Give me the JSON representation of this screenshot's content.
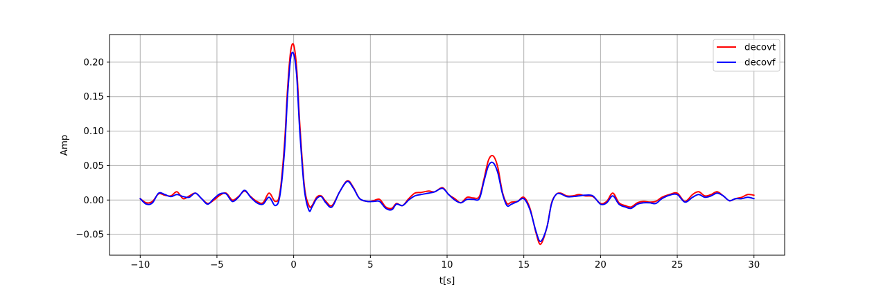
{
  "chart_data": {
    "type": "line",
    "title": "",
    "xlabel": "t[s]",
    "ylabel": "Amp",
    "xlim": [
      -12,
      32
    ],
    "ylim": [
      -0.08,
      0.24
    ],
    "xticks": [
      -10,
      -5,
      0,
      5,
      10,
      15,
      20,
      25,
      30
    ],
    "xtick_labels": [
      "−10",
      "−5",
      "0",
      "5",
      "10",
      "15",
      "20",
      "25",
      "30"
    ],
    "yticks": [
      -0.05,
      0.0,
      0.05,
      0.1,
      0.15,
      0.2
    ],
    "ytick_labels": [
      "−0.05",
      "0.00",
      "0.05",
      "0.10",
      "0.15",
      "0.20"
    ],
    "grid": true,
    "legend_position": "top-right",
    "series": [
      {
        "name": "decovt",
        "color": "#ff0000",
        "x": [
          -10,
          -9.6,
          -9.2,
          -8.8,
          -8.4,
          -8,
          -7.6,
          -7.2,
          -6.8,
          -6.4,
          -6,
          -5.6,
          -5.2,
          -4.8,
          -4.4,
          -4,
          -3.6,
          -3.2,
          -2.8,
          -2.4,
          -2,
          -1.6,
          -1.2,
          -0.9,
          -0.6,
          -0.4,
          -0.2,
          0,
          0.2,
          0.4,
          0.7,
          1,
          1.2,
          1.5,
          1.8,
          2.1,
          2.5,
          3,
          3.5,
          3.9,
          4.3,
          4.8,
          5.2,
          5.6,
          6,
          6.4,
          6.7,
          7.1,
          7.5,
          7.9,
          8.3,
          8.8,
          9.2,
          9.7,
          10.1,
          10.5,
          10.9,
          11.3,
          11.7,
          12.1,
          12.4,
          12.7,
          13,
          13.3,
          13.6,
          13.9,
          14.2,
          14.6,
          15,
          15.4,
          15.8,
          16.1,
          16.5,
          16.8,
          17.1,
          17.4,
          17.8,
          18.2,
          18.6,
          19,
          19.5,
          20,
          20.4,
          20.8,
          21.2,
          21.6,
          22,
          22.4,
          22.8,
          23.2,
          23.6,
          24,
          24.5,
          25,
          25.5,
          26,
          26.4,
          26.8,
          27.2,
          27.6,
          28,
          28.4,
          28.8,
          29.2,
          29.6,
          30
        ],
        "y": [
          0.002,
          -0.004,
          -0.002,
          0.009,
          0.007,
          0.006,
          0.012,
          0.002,
          0.006,
          0.01,
          0.002,
          -0.005,
          0.0,
          0.007,
          0.01,
          0.0,
          0.005,
          0.013,
          0.005,
          -0.002,
          -0.004,
          0.01,
          -0.002,
          0.01,
          0.08,
          0.16,
          0.215,
          0.225,
          0.19,
          0.11,
          0.02,
          -0.008,
          -0.008,
          0.004,
          0.006,
          -0.002,
          -0.008,
          0.012,
          0.028,
          0.018,
          0.002,
          -0.002,
          -0.001,
          0.001,
          -0.01,
          -0.012,
          -0.005,
          -0.008,
          0.002,
          0.01,
          0.011,
          0.013,
          0.012,
          0.018,
          0.008,
          0.002,
          -0.004,
          0.004,
          0.003,
          0.005,
          0.03,
          0.058,
          0.064,
          0.048,
          0.012,
          -0.005,
          -0.003,
          -0.002,
          0.004,
          -0.012,
          -0.048,
          -0.064,
          -0.04,
          -0.005,
          0.008,
          0.01,
          0.006,
          0.006,
          0.008,
          0.006,
          0.005,
          -0.005,
          -0.002,
          0.01,
          -0.004,
          -0.008,
          -0.01,
          -0.004,
          -0.002,
          -0.003,
          -0.002,
          0.004,
          0.008,
          0.01,
          -0.002,
          0.008,
          0.012,
          0.006,
          0.008,
          0.012,
          0.006,
          -0.001,
          0.002,
          0.004,
          0.008,
          0.007
        ]
      },
      {
        "name": "decovf",
        "color": "#0000ff",
        "x": [
          -10,
          -9.6,
          -9.2,
          -8.8,
          -8.4,
          -8,
          -7.6,
          -7.2,
          -6.8,
          -6.4,
          -6,
          -5.6,
          -5.2,
          -4.8,
          -4.4,
          -4,
          -3.6,
          -3.2,
          -2.8,
          -2.4,
          -2,
          -1.6,
          -1.2,
          -0.9,
          -0.6,
          -0.4,
          -0.2,
          0,
          0.2,
          0.4,
          0.7,
          1,
          1.2,
          1.5,
          1.8,
          2.1,
          2.5,
          3,
          3.5,
          3.9,
          4.3,
          4.8,
          5.2,
          5.6,
          6,
          6.4,
          6.7,
          7.1,
          7.5,
          7.9,
          8.3,
          8.8,
          9.2,
          9.7,
          10.1,
          10.5,
          10.9,
          11.3,
          11.7,
          12.1,
          12.4,
          12.7,
          13,
          13.3,
          13.6,
          13.9,
          14.2,
          14.6,
          15,
          15.4,
          15.8,
          16.1,
          16.5,
          16.8,
          17.1,
          17.4,
          17.8,
          18.2,
          18.6,
          19,
          19.5,
          20,
          20.4,
          20.8,
          21.2,
          21.6,
          22,
          22.4,
          22.8,
          23.2,
          23.6,
          24,
          24.5,
          25,
          25.5,
          26,
          26.4,
          26.8,
          27.2,
          27.6,
          28,
          28.4,
          28.8,
          29.2,
          29.6,
          30
        ],
        "y": [
          0.002,
          -0.006,
          -0.004,
          0.01,
          0.008,
          0.005,
          0.008,
          0.005,
          0.004,
          0.01,
          0.002,
          -0.006,
          0.002,
          0.009,
          0.009,
          -0.002,
          0.004,
          0.014,
          0.004,
          -0.004,
          -0.006,
          0.004,
          -0.008,
          0.006,
          0.07,
          0.15,
          0.205,
          0.212,
          0.18,
          0.1,
          0.015,
          -0.015,
          -0.01,
          0.002,
          0.005,
          -0.004,
          -0.01,
          0.012,
          0.027,
          0.017,
          0.002,
          -0.002,
          -0.002,
          -0.002,
          -0.012,
          -0.014,
          -0.006,
          -0.008,
          0.0,
          0.006,
          0.008,
          0.01,
          0.012,
          0.017,
          0.008,
          0.0,
          -0.004,
          0.001,
          0.001,
          0.002,
          0.027,
          0.05,
          0.054,
          0.04,
          0.01,
          -0.008,
          -0.006,
          -0.002,
          0.002,
          -0.014,
          -0.046,
          -0.06,
          -0.04,
          -0.006,
          0.008,
          0.009,
          0.005,
          0.005,
          0.006,
          0.007,
          0.006,
          -0.006,
          -0.004,
          0.006,
          -0.006,
          -0.01,
          -0.012,
          -0.006,
          -0.004,
          -0.004,
          -0.005,
          0.002,
          0.007,
          0.008,
          -0.003,
          0.004,
          0.008,
          0.004,
          0.006,
          0.01,
          0.006,
          -0.001,
          0.002,
          0.002,
          0.004,
          0.002
        ]
      }
    ]
  }
}
